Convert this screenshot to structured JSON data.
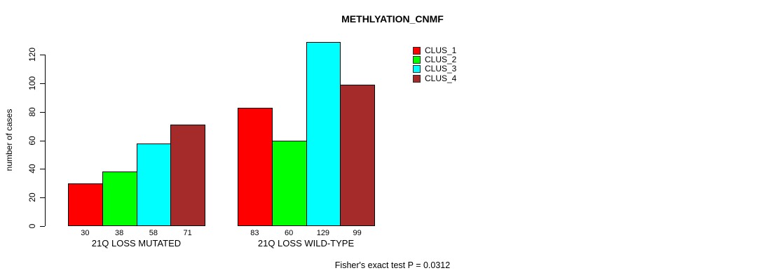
{
  "title": "METHLYATION_CNMF",
  "footnote": "Fisher's exact test P = 0.0312",
  "chart_data": {
    "type": "bar",
    "title": "METHLYATION_CNMF",
    "xlabel": "",
    "ylabel": "number of cases",
    "categories": [
      "21Q LOSS MUTATED",
      "21Q LOSS WILD-TYPE"
    ],
    "series": [
      {
        "name": "CLUS_1",
        "color": "#FF0000",
        "values": [
          30,
          83
        ]
      },
      {
        "name": "CLUS_2",
        "color": "#00FF00",
        "values": [
          38,
          60
        ]
      },
      {
        "name": "CLUS_3",
        "color": "#00FFFF",
        "values": [
          58,
          129
        ]
      },
      {
        "name": "CLUS_4",
        "color": "#A52A2A",
        "values": [
          71,
          99
        ]
      }
    ],
    "bar_value_labels": [
      [
        "30",
        "38",
        "58",
        "71"
      ],
      [
        "83",
        "60",
        "129",
        "99"
      ]
    ],
    "yticks": [
      0,
      20,
      40,
      60,
      80,
      100,
      120
    ],
    "ylim": [
      0,
      130
    ],
    "grid": false,
    "legend_position": "top-right",
    "legend_entries": [
      "CLUS_1",
      "CLUS_2",
      "CLUS_3",
      "CLUS_4"
    ],
    "annotation": "Fisher's exact test P = 0.0312"
  }
}
